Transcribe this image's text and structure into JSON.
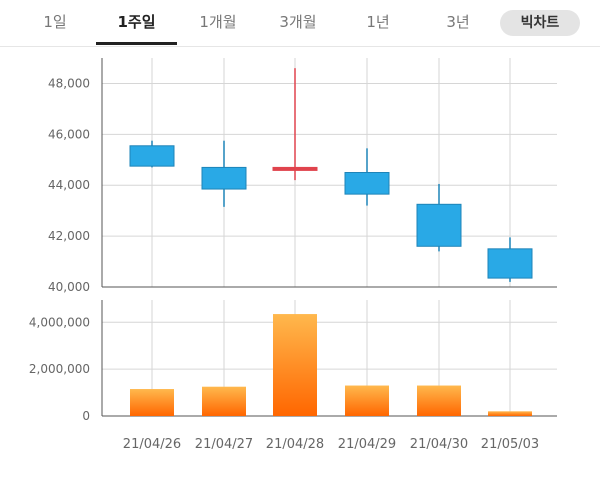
{
  "tabs": [
    {
      "label": "1일",
      "active": false
    },
    {
      "label": "1주일",
      "active": true
    },
    {
      "label": "1개월",
      "active": false
    },
    {
      "label": "3개월",
      "active": false
    },
    {
      "label": "1년",
      "active": false
    },
    {
      "label": "3년",
      "active": false
    }
  ],
  "big_chart_label": "빅차트",
  "colors": {
    "down_fill": "#29a9e6",
    "down_stroke": "#1e84b8",
    "up": "#e0434d",
    "volume_top": "#ffb84d",
    "volume_bottom": "#ff6600",
    "grid": "#d6d6d6"
  },
  "chart_data": {
    "type": "candlestick",
    "title": "",
    "x": [
      "21/04/26",
      "21/04/27",
      "21/04/28",
      "21/04/29",
      "21/04/30",
      "21/05/03"
    ],
    "price": {
      "ylim": [
        40000,
        49000
      ],
      "ticks": [
        "40,000",
        "42,000",
        "44,000",
        "46,000",
        "48,000"
      ],
      "tick_values": [
        40000,
        42000,
        44000,
        46000,
        48000
      ],
      "open": [
        45550,
        44700,
        44600,
        44500,
        43250,
        41500
      ],
      "high": [
        45750,
        45750,
        48600,
        45450,
        44050,
        41950
      ],
      "low": [
        44700,
        43150,
        44200,
        43200,
        41400,
        40200
      ],
      "close": [
        44750,
        43850,
        44700,
        43650,
        41600,
        40350
      ]
    },
    "volume": {
      "ylim": [
        0,
        4950000
      ],
      "ticks": [
        "0",
        "2,000,000",
        "4,000,000"
      ],
      "tick_values": [
        0,
        2000000,
        4000000
      ],
      "values": [
        1150000,
        1250000,
        4350000,
        1300000,
        1300000,
        200000
      ]
    },
    "grid": true
  }
}
